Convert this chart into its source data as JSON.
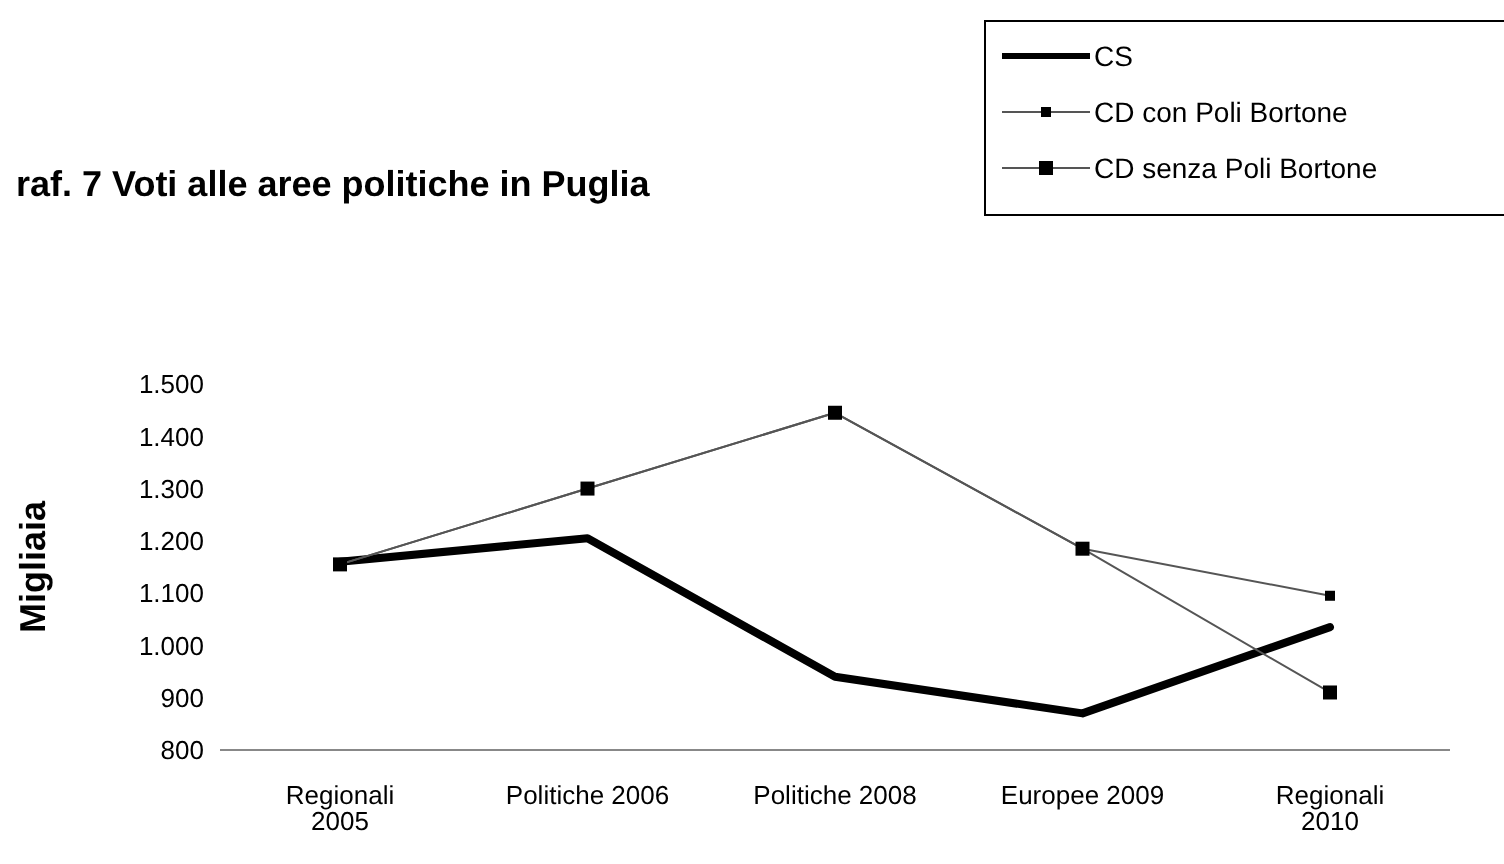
{
  "chart_data": {
    "type": "line",
    "title": "raf. 7 Voti alle aree politiche in Puglia",
    "ylabel": "Migliaia",
    "categories": [
      "Regionali 2005",
      "Politiche 2006",
      "Politiche 2008",
      "Europee 2009",
      "Regionali 2010"
    ],
    "series": [
      {
        "name": "CS",
        "color": "#000000",
        "marker": "none",
        "values": [
          1160,
          1205,
          940,
          870,
          1035
        ]
      },
      {
        "name": "CD con Poli Bortone",
        "color": "#555555",
        "marker": "square",
        "values": [
          1155,
          1300,
          1445,
          1185,
          1095
        ]
      },
      {
        "name": "CD senza Poli Bortone",
        "color": "#555555",
        "marker": "square",
        "values": [
          1155,
          1300,
          1445,
          1185,
          910
        ]
      }
    ],
    "ylim": [
      800,
      1500
    ],
    "yticks": [
      {
        "value": 800,
        "label": "800"
      },
      {
        "value": 900,
        "label": "900"
      },
      {
        "value": 1000,
        "label": "1.000"
      },
      {
        "value": 1100,
        "label": "1.100"
      },
      {
        "value": 1200,
        "label": "1.200"
      },
      {
        "value": 1300,
        "label": "1.300"
      },
      {
        "value": 1400,
        "label": "1.400"
      },
      {
        "value": 1500,
        "label": "1.500"
      }
    ],
    "grid": false,
    "legend": "top right",
    "line_style": "solid"
  }
}
